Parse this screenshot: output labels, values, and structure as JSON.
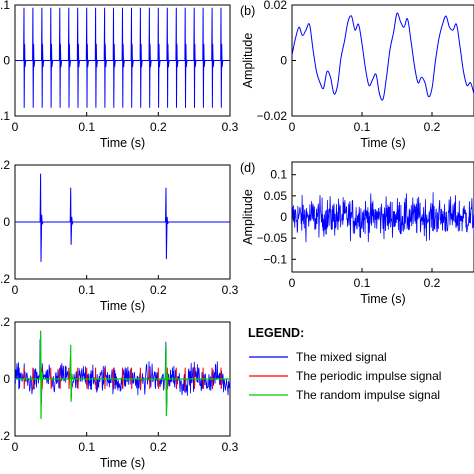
{
  "chart_data": [
    {
      "id": "a",
      "type": "line",
      "panel_label": "",
      "description_series": "periodic impulse train",
      "xlabel": "Time (s)",
      "ylabel": "",
      "xlim": [
        0,
        0.3
      ],
      "ylim": [
        -0.1,
        0.1
      ],
      "xticks": [
        "0",
        "0.1",
        "0.2",
        "0.3"
      ],
      "yticks": [
        ".1",
        "0",
        ".1"
      ],
      "impulse_period_s": 0.0125,
      "impulse_peak": 0.095,
      "impulse_trough": -0.085,
      "series": [
        {
          "color": "#0000ff"
        }
      ]
    },
    {
      "id": "b",
      "type": "line",
      "panel_label": "(b)",
      "xlabel": "Time (s)",
      "ylabel": "Amplitude",
      "xlim": [
        0,
        0.26
      ],
      "ylim": [
        -0.02,
        0.02
      ],
      "xticks": [
        "0",
        "0.1",
        "0.2"
      ],
      "yticks": [
        "0.02",
        "0",
        "−0.02"
      ],
      "series": [
        {
          "color": "#0000ff",
          "x": [
            0,
            0.005,
            0.01,
            0.015,
            0.02,
            0.025,
            0.03,
            0.035,
            0.04,
            0.045,
            0.05,
            0.055,
            0.06,
            0.065,
            0.07,
            0.075,
            0.08,
            0.085,
            0.09,
            0.095,
            0.1,
            0.105,
            0.11,
            0.115,
            0.12,
            0.125,
            0.13,
            0.135,
            0.14,
            0.145,
            0.15,
            0.155,
            0.16,
            0.165,
            0.17,
            0.175,
            0.18,
            0.185,
            0.19,
            0.195,
            0.2,
            0.205,
            0.21,
            0.215,
            0.22,
            0.225,
            0.23,
            0.235,
            0.24,
            0.245,
            0.25,
            0.255,
            0.26
          ],
          "y": [
            0.002,
            0.008,
            0.012,
            0.009,
            0.011,
            0.013,
            0.004,
            -0.004,
            -0.008,
            -0.01,
            -0.004,
            -0.006,
            -0.012,
            -0.009,
            0.001,
            0.007,
            0.014,
            0.016,
            0.011,
            0.013,
            0.006,
            -0.003,
            -0.009,
            -0.007,
            -0.005,
            -0.012,
            -0.014,
            -0.006,
            0.004,
            0.01,
            0.017,
            0.014,
            0.012,
            0.015,
            0.007,
            -0.002,
            -0.008,
            -0.006,
            -0.008,
            -0.013,
            -0.01,
            0.0,
            0.008,
            0.013,
            0.016,
            0.012,
            0.011,
            0.013,
            0.005,
            -0.004,
            -0.009,
            -0.008,
            -0.012
          ]
        }
      ]
    },
    {
      "id": "c",
      "type": "line",
      "panel_label": "",
      "xlabel": "Time (s)",
      "ylabel": "",
      "xlim": [
        0,
        0.3
      ],
      "ylim": [
        -0.2,
        0.2
      ],
      "xticks": [
        "0",
        "0.1",
        "0.2",
        "0.3"
      ],
      "yticks": [
        ".2",
        "0",
        ".2"
      ],
      "impulses": [
        {
          "t": 0.036,
          "peak": 0.17,
          "trough": -0.14
        },
        {
          "t": 0.078,
          "peak": 0.12,
          "trough": -0.08
        },
        {
          "t": 0.211,
          "peak": 0.12,
          "trough": -0.13
        }
      ],
      "series": [
        {
          "color": "#0000ff"
        }
      ]
    },
    {
      "id": "d",
      "type": "line",
      "panel_label": "(d)",
      "xlabel": "Time (s)",
      "ylabel": "Amplitude",
      "xlim": [
        0,
        0.26
      ],
      "ylim": [
        -0.13,
        0.13
      ],
      "xticks": [
        "0",
        "0.1",
        "0.2"
      ],
      "yticks": [
        "0.1",
        "0.05",
        "0",
        "−0.05",
        "−0.1"
      ],
      "noise_amplitude": 0.06,
      "series": [
        {
          "color": "#0000ff"
        }
      ]
    },
    {
      "id": "e",
      "type": "line",
      "panel_label": "",
      "xlabel": "Time (s)",
      "ylabel": "",
      "xlim": [
        0,
        0.3
      ],
      "ylim": [
        -0.2,
        0.2
      ],
      "xticks": [
        "0",
        "0.1",
        "0.2",
        "0.3"
      ],
      "yticks": [
        ".2",
        "0",
        ".2"
      ],
      "series": [
        {
          "name": "The mixed signal",
          "color": "#0000ff"
        },
        {
          "name": "The periodic impulse signal",
          "color": "#ff0000"
        },
        {
          "name": "The random impulse signal",
          "color": "#00cc00"
        }
      ]
    }
  ],
  "legend": {
    "title": "LEGEND:",
    "items": [
      {
        "label": "The mixed signal",
        "color": "#0000ff"
      },
      {
        "label": "The periodic impulse signal",
        "color": "#ff0000"
      },
      {
        "label": "The random impulse signal",
        "color": "#00cc00"
      }
    ]
  }
}
